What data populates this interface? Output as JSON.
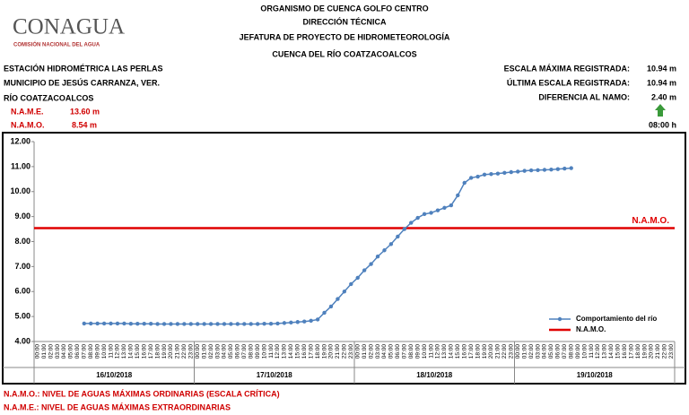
{
  "header": {
    "logo": "CONAGUA",
    "logo_subtitle": "COMISIÓN NACIONAL DEL AGUA",
    "title_lines": [
      "ORGANISMO DE CUENCA GOLFO CENTRO",
      "DIRECCIÓN TÉCNICA",
      "JEFATURA DE PROYECTO DE HIDROMETEOROLOGÍA",
      "CUENCA DEL RÍO COATZACOALCOS"
    ]
  },
  "station": {
    "lines": [
      "ESTACIÓN HIDROMÉTRICA LAS PERLAS",
      "MUNICIPIO DE JESÚS CARRANZA, VER.",
      "RÍO COATZACOALCOS"
    ],
    "levels": [
      {
        "label": "N.A.M.E.",
        "value": "13.60 m"
      },
      {
        "label": "N.A.M.O.",
        "value": "8.54 m"
      }
    ]
  },
  "summary": {
    "rows": [
      {
        "label": "ESCALA MÁXIMA REGISTRADA:",
        "value": "10.94 m"
      },
      {
        "label": "ÚLTIMA ESCALA REGISTRADA:",
        "value": "10.94 m"
      },
      {
        "label": "DIFERENCIA AL NAMO:",
        "value": "2.40 m"
      }
    ],
    "time": "08:00 h"
  },
  "chart_data": {
    "type": "line",
    "categories": [
      "00:00",
      "01:00",
      "02:00",
      "03:00",
      "04:00",
      "05:00",
      "06:00",
      "07:00",
      "08:00",
      "09:00",
      "10:00",
      "11:00",
      "12:00",
      "13:00",
      "14:00",
      "15:00",
      "16:00",
      "17:00",
      "18:00",
      "19:00",
      "20:00",
      "21:00",
      "22:00",
      "23:00",
      "00:00",
      "01:00",
      "02:00",
      "03:00",
      "04:00",
      "05:00",
      "06:00",
      "07:00",
      "08:00",
      "09:00",
      "10:00",
      "11:00",
      "12:00",
      "13:00",
      "14:00",
      "15:00",
      "16:00",
      "17:00",
      "18:00",
      "19:00",
      "20:00",
      "21:00",
      "22:00",
      "23:00",
      "00:00",
      "01:00",
      "02:00",
      "03:00",
      "04:00",
      "05:00",
      "06:00",
      "07:00",
      "08:00",
      "09:00",
      "10:00",
      "11:00",
      "12:00",
      "13:00",
      "14:00",
      "15:00",
      "16:00",
      "17:00",
      "18:00",
      "19:00",
      "20:00",
      "21:00",
      "22:00",
      "23:00",
      "00:00",
      "01:00",
      "02:00",
      "03:00",
      "04:00",
      "05:00",
      "06:00",
      "07:00",
      "08:00",
      "09:00",
      "10:00",
      "11:00",
      "12:00",
      "13:00",
      "14:00",
      "15:00",
      "16:00",
      "17:00",
      "18:00",
      "19:00",
      "20:00",
      "21:00",
      "22:00",
      "23:00"
    ],
    "date_groups": [
      "16/10/2018",
      "17/10/2018",
      "18/10/2018",
      "19/10/2018"
    ],
    "series": [
      {
        "name": "Comportamiento del río",
        "color": "#4f81bd",
        "values": [
          null,
          null,
          null,
          null,
          null,
          null,
          null,
          4.72,
          4.72,
          4.72,
          4.72,
          4.72,
          4.72,
          4.72,
          4.71,
          4.71,
          4.71,
          4.71,
          4.7,
          4.7,
          4.7,
          4.7,
          4.7,
          4.7,
          4.7,
          4.7,
          4.7,
          4.7,
          4.7,
          4.7,
          4.7,
          4.7,
          4.7,
          4.7,
          4.71,
          4.71,
          4.72,
          4.74,
          4.76,
          4.78,
          4.8,
          4.83,
          4.88,
          5.15,
          5.4,
          5.7,
          6.0,
          6.3,
          6.55,
          6.85,
          7.1,
          7.4,
          7.65,
          7.9,
          8.2,
          8.5,
          8.75,
          8.95,
          9.1,
          9.15,
          9.25,
          9.35,
          9.45,
          9.85,
          10.35,
          10.55,
          10.6,
          10.68,
          10.7,
          10.72,
          10.75,
          10.78,
          10.8,
          10.83,
          10.85,
          10.86,
          10.87,
          10.88,
          10.9,
          10.92,
          10.94,
          null,
          null,
          null,
          null,
          null,
          null,
          null,
          null,
          null,
          null,
          null,
          null,
          null,
          null,
          null
        ]
      }
    ],
    "reference_lines": [
      {
        "name": "N.A.M.O.",
        "label": "N.A.M.O.",
        "value": 8.54,
        "color": "#e00000"
      }
    ],
    "ylim": [
      4,
      12
    ],
    "yticks": [
      {
        "value": 4,
        "label": "4.00"
      },
      {
        "value": 5,
        "label": "5.00"
      },
      {
        "value": 6,
        "label": "6.00"
      },
      {
        "value": 7,
        "label": "7.00"
      },
      {
        "value": 8,
        "label": "8.00"
      },
      {
        "value": 9,
        "label": "9.00"
      },
      {
        "value": 10,
        "label": "10.00"
      },
      {
        "value": 11,
        "label": "11.00"
      },
      {
        "value": 12,
        "label": "12.00"
      }
    ],
    "grid": false,
    "legend": "lower right"
  },
  "footer": {
    "notes": [
      "N.A.M.O.: NIVEL DE AGUAS MÁXIMAS ORDINARIAS (ESCALA CRÍTICA)",
      "N.A.M.E.: NIVEL DE AGUAS MÁXIMAS EXTRAORDINARIAS"
    ]
  }
}
